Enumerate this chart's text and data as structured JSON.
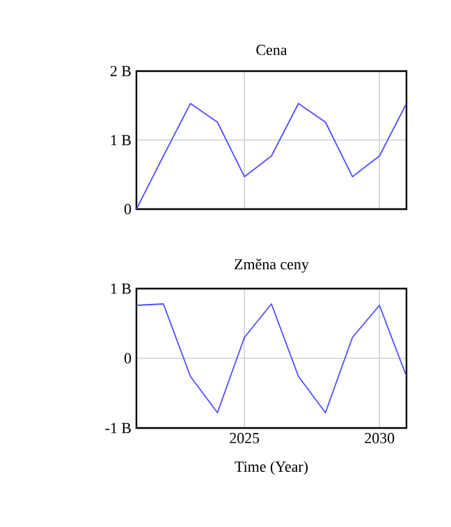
{
  "chart_data": [
    {
      "type": "line",
      "title": "Cena",
      "x": [
        2021,
        2022,
        2023,
        2024,
        2025,
        2026,
        2027,
        2028,
        2029,
        2030,
        2031
      ],
      "series": [
        {
          "color": "#4f4fff",
          "values": [
            0,
            0.77,
            1.53,
            1.26,
            0.47,
            0.77,
            1.53,
            1.26,
            0.47,
            0.77,
            1.53
          ]
        }
      ],
      "xlim": [
        2021,
        2031
      ],
      "xticks": [
        2025,
        2030
      ],
      "ylim": [
        0,
        2
      ],
      "yticks": [
        0,
        {
          "value": 1,
          "label": "1 B"
        },
        {
          "value": 2,
          "label": "2 B"
        }
      ],
      "grid": true,
      "tick_labels": "y"
    },
    {
      "type": "line",
      "title": "Změna ceny",
      "xlabel": "Time (Year)",
      "x": [
        2021,
        2022,
        2023,
        2024,
        2025,
        2026,
        2027,
        2028,
        2029,
        2030,
        2031
      ],
      "series": [
        {
          "color": "#4f4fff",
          "values": [
            0.76,
            0.78,
            -0.26,
            -0.78,
            0.3,
            0.78,
            -0.26,
            -0.78,
            0.3,
            0.76,
            -0.26
          ]
        }
      ],
      "xlim": [
        2021,
        2031
      ],
      "xticks": [
        2025,
        2030
      ],
      "ylim": [
        -1,
        1
      ],
      "yticks": [
        {
          "value": -1,
          "label": "-1 B"
        },
        0,
        {
          "value": 1,
          "label": "1 B"
        }
      ],
      "grid": true
    }
  ]
}
